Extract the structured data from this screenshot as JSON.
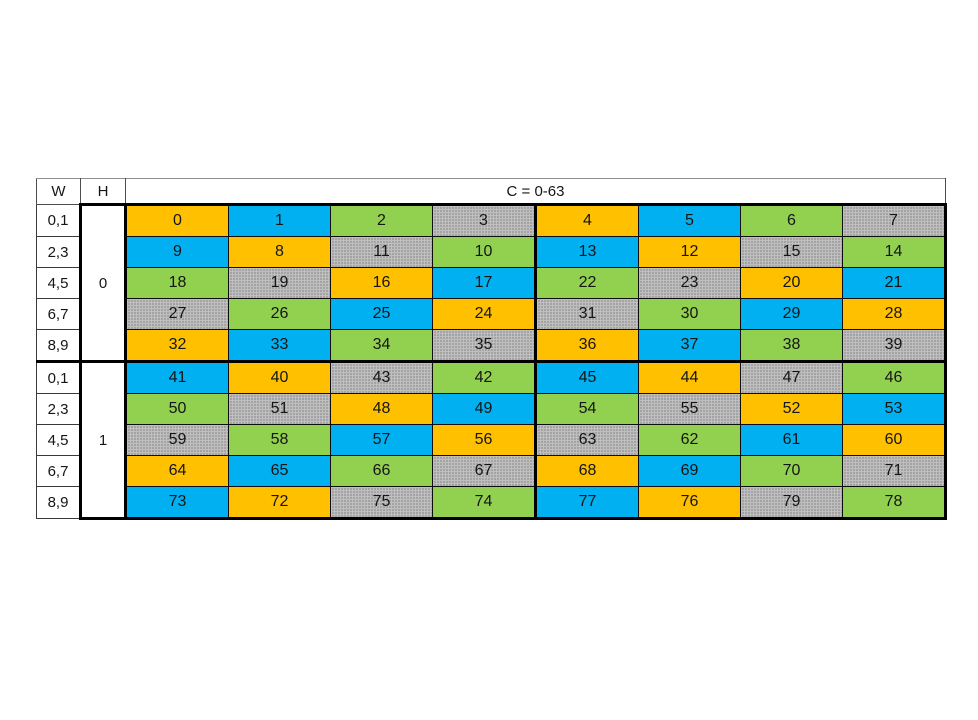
{
  "page": {
    "background": "#ffffff"
  },
  "header": {
    "w_label": "W",
    "h_label": "H",
    "c_label": "C = 0-63"
  },
  "colors": {
    "orange": "#FFC000",
    "blue": "#00B0F0",
    "green": "#92D050",
    "gray": "#BFBFBF"
  },
  "groups": [
    {
      "h_label": "0",
      "rows": [
        {
          "w": "0,1",
          "cells": [
            {
              "v": "0",
              "c": "orange"
            },
            {
              "v": "1",
              "c": "blue"
            },
            {
              "v": "2",
              "c": "green"
            },
            {
              "v": "3",
              "c": "gray"
            },
            {
              "v": "4",
              "c": "orange"
            },
            {
              "v": "5",
              "c": "blue"
            },
            {
              "v": "6",
              "c": "green"
            },
            {
              "v": "7",
              "c": "gray"
            }
          ]
        },
        {
          "w": "2,3",
          "cells": [
            {
              "v": "9",
              "c": "blue"
            },
            {
              "v": "8",
              "c": "orange"
            },
            {
              "v": "11",
              "c": "gray"
            },
            {
              "v": "10",
              "c": "green"
            },
            {
              "v": "13",
              "c": "blue"
            },
            {
              "v": "12",
              "c": "orange"
            },
            {
              "v": "15",
              "c": "gray"
            },
            {
              "v": "14",
              "c": "green"
            }
          ]
        },
        {
          "w": "4,5",
          "cells": [
            {
              "v": "18",
              "c": "green"
            },
            {
              "v": "19",
              "c": "gray"
            },
            {
              "v": "16",
              "c": "orange"
            },
            {
              "v": "17",
              "c": "blue"
            },
            {
              "v": "22",
              "c": "green"
            },
            {
              "v": "23",
              "c": "gray"
            },
            {
              "v": "20",
              "c": "orange"
            },
            {
              "v": "21",
              "c": "blue"
            }
          ]
        },
        {
          "w": "6,7",
          "cells": [
            {
              "v": "27",
              "c": "gray"
            },
            {
              "v": "26",
              "c": "green"
            },
            {
              "v": "25",
              "c": "blue"
            },
            {
              "v": "24",
              "c": "orange"
            },
            {
              "v": "31",
              "c": "gray"
            },
            {
              "v": "30",
              "c": "green"
            },
            {
              "v": "29",
              "c": "blue"
            },
            {
              "v": "28",
              "c": "orange"
            }
          ]
        },
        {
          "w": "8,9",
          "cells": [
            {
              "v": "32",
              "c": "orange"
            },
            {
              "v": "33",
              "c": "blue"
            },
            {
              "v": "34",
              "c": "green"
            },
            {
              "v": "35",
              "c": "gray"
            },
            {
              "v": "36",
              "c": "orange"
            },
            {
              "v": "37",
              "c": "blue"
            },
            {
              "v": "38",
              "c": "green"
            },
            {
              "v": "39",
              "c": "gray"
            }
          ]
        }
      ]
    },
    {
      "h_label": "1",
      "rows": [
        {
          "w": "0,1",
          "cells": [
            {
              "v": "41",
              "c": "blue"
            },
            {
              "v": "40",
              "c": "orange"
            },
            {
              "v": "43",
              "c": "gray"
            },
            {
              "v": "42",
              "c": "green"
            },
            {
              "v": "45",
              "c": "blue"
            },
            {
              "v": "44",
              "c": "orange"
            },
            {
              "v": "47",
              "c": "gray"
            },
            {
              "v": "46",
              "c": "green"
            }
          ]
        },
        {
          "w": "2,3",
          "cells": [
            {
              "v": "50",
              "c": "green"
            },
            {
              "v": "51",
              "c": "gray"
            },
            {
              "v": "48",
              "c": "orange"
            },
            {
              "v": "49",
              "c": "blue"
            },
            {
              "v": "54",
              "c": "green"
            },
            {
              "v": "55",
              "c": "gray"
            },
            {
              "v": "52",
              "c": "orange"
            },
            {
              "v": "53",
              "c": "blue"
            }
          ]
        },
        {
          "w": "4,5",
          "cells": [
            {
              "v": "59",
              "c": "gray"
            },
            {
              "v": "58",
              "c": "green"
            },
            {
              "v": "57",
              "c": "blue"
            },
            {
              "v": "56",
              "c": "orange"
            },
            {
              "v": "63",
              "c": "gray"
            },
            {
              "v": "62",
              "c": "green"
            },
            {
              "v": "61",
              "c": "blue"
            },
            {
              "v": "60",
              "c": "orange"
            }
          ]
        },
        {
          "w": "6,7",
          "cells": [
            {
              "v": "64",
              "c": "orange"
            },
            {
              "v": "65",
              "c": "blue"
            },
            {
              "v": "66",
              "c": "green"
            },
            {
              "v": "67",
              "c": "gray"
            },
            {
              "v": "68",
              "c": "orange"
            },
            {
              "v": "69",
              "c": "blue"
            },
            {
              "v": "70",
              "c": "green"
            },
            {
              "v": "71",
              "c": "gray"
            }
          ]
        },
        {
          "w": "8,9",
          "cells": [
            {
              "v": "73",
              "c": "blue"
            },
            {
              "v": "72",
              "c": "orange"
            },
            {
              "v": "75",
              "c": "gray"
            },
            {
              "v": "74",
              "c": "green"
            },
            {
              "v": "77",
              "c": "blue"
            },
            {
              "v": "76",
              "c": "orange"
            },
            {
              "v": "79",
              "c": "gray"
            },
            {
              "v": "78",
              "c": "green"
            }
          ]
        }
      ]
    }
  ]
}
